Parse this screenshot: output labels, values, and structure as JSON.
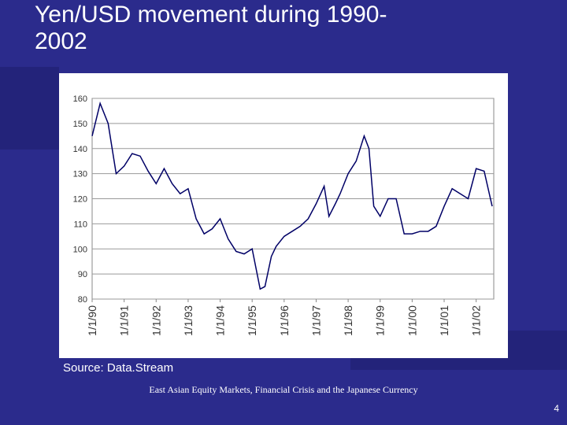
{
  "title": "Yen/USD movement during 1990-2002",
  "source": "Source: Data.Stream",
  "footer": "East Asian Equity Markets, Financial Crisis and the Japanese Currency",
  "page_number": "4",
  "chart_data": {
    "type": "line",
    "x": [
      1990.0,
      1990.25,
      1990.5,
      1990.75,
      1991.0,
      1991.25,
      1991.5,
      1991.75,
      1992.0,
      1992.25,
      1992.5,
      1992.75,
      1993.0,
      1993.25,
      1993.5,
      1993.75,
      1994.0,
      1994.25,
      1994.5,
      1994.75,
      1995.0,
      1995.25,
      1995.4,
      1995.6,
      1995.75,
      1996.0,
      1996.25,
      1996.5,
      1996.75,
      1997.0,
      1997.25,
      1997.4,
      1997.6,
      1997.75,
      1998.0,
      1998.25,
      1998.5,
      1998.65,
      1998.8,
      1999.0,
      1999.25,
      1999.5,
      1999.75,
      2000.0,
      2000.25,
      2000.5,
      2000.75,
      2001.0,
      2001.25,
      2001.5,
      2001.75,
      2002.0,
      2002.25,
      2002.5
    ],
    "series": [
      {
        "color": "#000066",
        "values": [
          145,
          158,
          150,
          130,
          133,
          138,
          137,
          131,
          126,
          132,
          126,
          122,
          124,
          112,
          106,
          108,
          112,
          104,
          99,
          98,
          100,
          84,
          85,
          97,
          101,
          105,
          107,
          109,
          112,
          118,
          125,
          113,
          118,
          122,
          130,
          135,
          145,
          140,
          117,
          113,
          120,
          120,
          106,
          106,
          107,
          107,
          109,
          117,
          124,
          122,
          120,
          132,
          131,
          117
        ]
      }
    ],
    "xlim": [
      1990,
      2002.55
    ],
    "xticks": [
      {
        "value": 1990,
        "label": "1/1/90"
      },
      {
        "value": 1991,
        "label": "1/1/91"
      },
      {
        "value": 1992,
        "label": "1/1/92"
      },
      {
        "value": 1993,
        "label": "1/1/93"
      },
      {
        "value": 1994,
        "label": "1/1/94"
      },
      {
        "value": 1995,
        "label": "1/1/95"
      },
      {
        "value": 1996,
        "label": "1/1/96"
      },
      {
        "value": 1997,
        "label": "1/1/97"
      },
      {
        "value": 1998,
        "label": "1/1/98"
      },
      {
        "value": 1999,
        "label": "1/1/99"
      },
      {
        "value": 2000,
        "label": "1/1/00"
      },
      {
        "value": 2001,
        "label": "1/1/01"
      },
      {
        "value": 2002,
        "label": "1/1/02"
      }
    ],
    "ylim": [
      80,
      160
    ],
    "yticks": [
      80,
      90,
      100,
      110,
      120,
      130,
      140,
      150,
      160
    ],
    "grid": true
  }
}
